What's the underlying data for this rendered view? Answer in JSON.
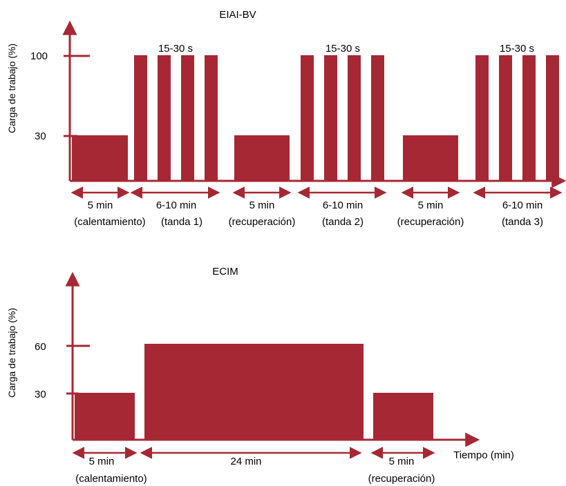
{
  "colors": {
    "accent": "#a62834",
    "text": "#000000",
    "background": "#ffffff"
  },
  "top_chart": {
    "title": "EIAI-BV",
    "ylabel": "Carga de trabajo (%)",
    "y_ticks": [
      "100",
      "30"
    ],
    "burst_label": "15-30 s",
    "phases": [
      {
        "duration": "5 min",
        "note": "(calentamiento)",
        "load": 30
      },
      {
        "duration": "6-10 min",
        "note": "(tanda 1)",
        "load": 100
      },
      {
        "duration": "5 min",
        "note": "(recuperación)",
        "load": 30
      },
      {
        "duration": "6-10 min",
        "note": "(tanda 2)",
        "load": 100
      },
      {
        "duration": "5 min",
        "note": "(recuperación)",
        "load": 30
      },
      {
        "duration": "6-10 min",
        "note": "(tanda 3)",
        "load": 100
      }
    ]
  },
  "bottom_chart": {
    "title": "ECIM",
    "ylabel": "Carga de trabajo (%)",
    "xlabel": "Tiempo (min)",
    "y_ticks": [
      "60",
      "30"
    ],
    "phases": [
      {
        "duration": "5 min",
        "note": "(calentamiento)",
        "load": 30
      },
      {
        "duration": "24 min",
        "note": "",
        "load": 60
      },
      {
        "duration": "5 min",
        "note": "(recuperación)",
        "load": 30
      }
    ]
  }
}
